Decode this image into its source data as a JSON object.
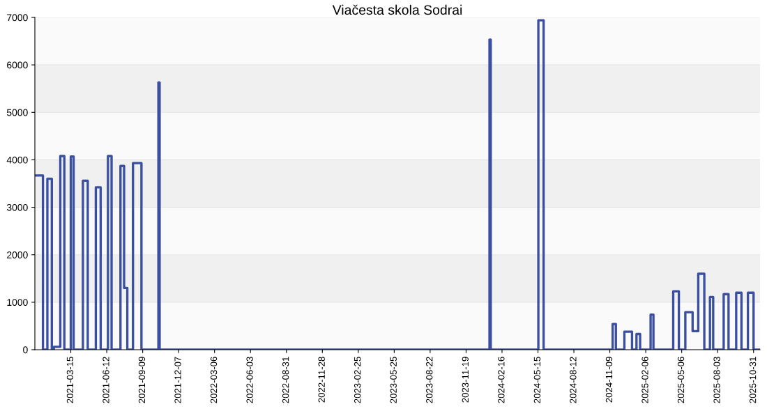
{
  "chart_data": {
    "type": "step",
    "title": "Viačesta skola Sodrai",
    "x": [
      "2020-12-16",
      "2021-01-05",
      "2021-01-16",
      "2021-01-27",
      "2021-02-01",
      "2021-02-17",
      "2021-02-27",
      "2021-03-15",
      "2021-03-22",
      "2021-04-14",
      "2021-04-26",
      "2021-05-16",
      "2021-05-28",
      "2021-06-15",
      "2021-06-24",
      "2021-07-16",
      "2021-07-25",
      "2021-08-02",
      "2021-08-16",
      "2021-09-06",
      "2021-10-18",
      "2021-10-21",
      "2024-01-16",
      "2024-01-19",
      "2024-05-16",
      "2024-05-29",
      "2024-11-16",
      "2024-11-24",
      "2024-12-15",
      "2025-01-03",
      "2025-01-14",
      "2025-01-23",
      "2025-02-18",
      "2025-02-25",
      "2025-04-15",
      "2025-04-29",
      "2025-05-15",
      "2025-06-02",
      "2025-06-16",
      "2025-07-01",
      "2025-07-15",
      "2025-07-23",
      "2025-08-18",
      "2025-08-30",
      "2025-09-18",
      "2025-10-01",
      "2025-10-17",
      "2025-10-31",
      "2025-11-16"
    ],
    "series": [
      {
        "color": "#3a4fa0",
        "values": [
          3670,
          0,
          3600,
          0,
          60,
          4080,
          0,
          4070,
          0,
          3560,
          0,
          3420,
          0,
          4080,
          0,
          3870,
          1300,
          0,
          3930,
          0,
          5630,
          0,
          6530,
          0,
          6940,
          0,
          540,
          0,
          380,
          0,
          330,
          0,
          740,
          0,
          1230,
          0,
          790,
          390,
          1600,
          0,
          1110,
          0,
          1170,
          0,
          1200,
          0,
          1200,
          0,
          0
        ]
      }
    ],
    "xlim": [
      "2020-12-16",
      "2025-11-16"
    ],
    "xticks": [
      "2021-03-15",
      "2021-06-12",
      "2021-09-09",
      "2021-12-07",
      "2022-03-06",
      "2022-06-03",
      "2022-08-31",
      "2022-11-28",
      "2023-02-25",
      "2023-05-25",
      "2023-08-22",
      "2023-11-19",
      "2024-02-16",
      "2024-05-15",
      "2024-08-12",
      "2024-11-09",
      "2025-02-06",
      "2025-05-06",
      "2025-08-03",
      "2025-10-31"
    ],
    "ylim": [
      0,
      7000
    ],
    "yticks": [
      0,
      1000,
      2000,
      3000,
      4000,
      5000,
      6000,
      7000
    ],
    "grid": "y"
  }
}
